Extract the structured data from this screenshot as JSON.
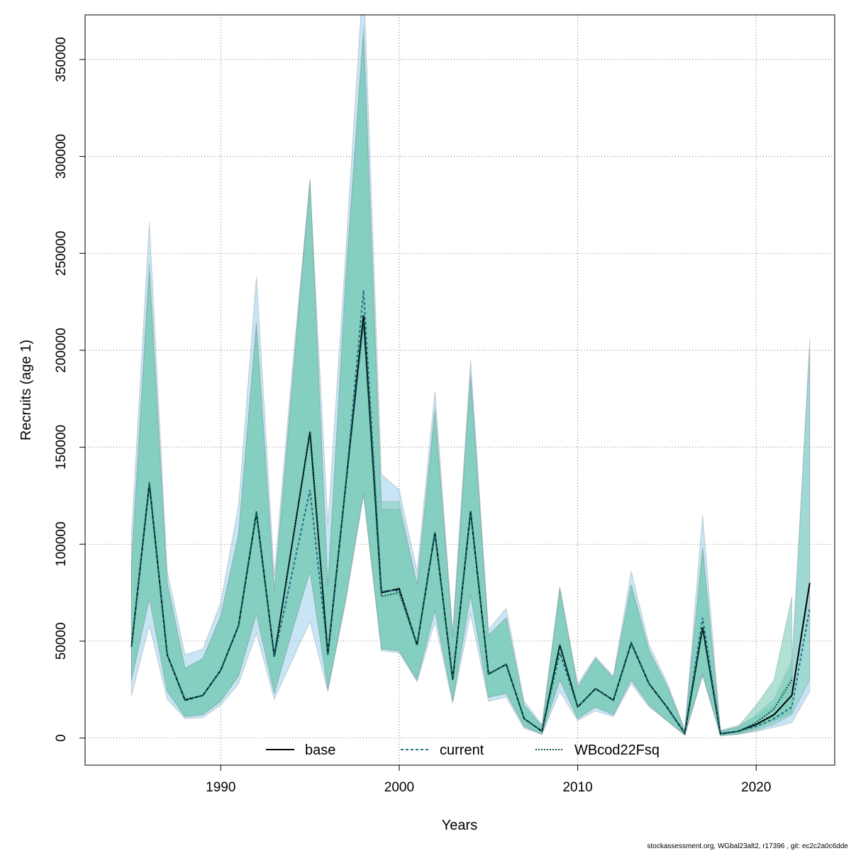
{
  "chart_data": {
    "type": "area",
    "xlabel": "Years",
    "ylabel": "Recruits (age 1)",
    "xlim": [
      1982.4,
      2024.4
    ],
    "ylim": [
      -14000,
      373000
    ],
    "x_ticks": [
      1990,
      2000,
      2010,
      2020
    ],
    "y_ticks": [
      0,
      50000,
      100000,
      150000,
      200000,
      250000,
      300000,
      350000
    ],
    "grid": true,
    "legend_position": "bottom-center",
    "years": [
      1985,
      1986,
      1987,
      1988,
      1989,
      1990,
      1991,
      1992,
      1993,
      1994,
      1995,
      1996,
      1997,
      1998,
      1999,
      2000,
      2001,
      2002,
      2003,
      2004,
      2005,
      2006,
      2007,
      2008,
      2009,
      2010,
      2011,
      2012,
      2013,
      2014,
      2015,
      2016,
      2017,
      2018,
      2019,
      2020,
      2021,
      2022,
      2023
    ],
    "series": [
      {
        "name": "base",
        "line_color": "#000000",
        "line_style": "solid",
        "band_color": "#7fcdbb",
        "values": [
          47000,
          131000,
          43000,
          19500,
          22000,
          35000,
          58000,
          116000,
          42000,
          100000,
          158000,
          43000,
          130000,
          218000,
          75000,
          77000,
          48000,
          106000,
          30000,
          117000,
          33000,
          38000,
          10000,
          3500,
          48000,
          16000,
          25500,
          19500,
          49000,
          28000,
          16000,
          2500,
          57000,
          2200,
          3500,
          7000,
          12000,
          22000,
          80000
        ],
        "lower": [
          30000,
          72000,
          24000,
          11000,
          12000,
          19000,
          32000,
          64000,
          23000,
          55000,
          86000,
          25000,
          72000,
          127000,
          46000,
          45000,
          30000,
          66000,
          19000,
          74000,
          21000,
          23000,
          6000,
          2000,
          30000,
          10000,
          16000,
          12000,
          30000,
          17000,
          9000,
          1500,
          33000,
          1300,
          2000,
          4000,
          7000,
          12000,
          30000
        ],
        "upper": [
          90000,
          245000,
          80000,
          36000,
          41000,
          63000,
          105000,
          215000,
          76000,
          182000,
          288000,
          78000,
          236000,
          367000,
          122000,
          122000,
          79000,
          170000,
          52000,
          188000,
          53000,
          62000,
          17000,
          6000,
          77000,
          26000,
          41000,
          31000,
          79000,
          45000,
          27000,
          4000,
          98000,
          3500,
          5500,
          12000,
          20000,
          40000,
          200000
        ]
      },
      {
        "name": "current",
        "line_color": "#1f6e8c",
        "line_style": "dashed",
        "band_color": "#8fcbe9",
        "values": [
          47000,
          131000,
          43000,
          19500,
          22000,
          35000,
          58000,
          116000,
          42000,
          85000,
          128000,
          43000,
          130000,
          231000,
          76000,
          76000,
          48000,
          106000,
          30000,
          117000,
          33000,
          38000,
          10000,
          3500,
          44000,
          16000,
          25500,
          19500,
          49000,
          28000,
          16000,
          2500,
          62000,
          2200,
          3500,
          6000,
          10000,
          16000,
          67000
        ],
        "lower": [
          22000,
          58000,
          20000,
          10000,
          10500,
          17000,
          28000,
          54000,
          20000,
          40000,
          60000,
          24000,
          70000,
          125000,
          45000,
          44000,
          29000,
          60000,
          18000,
          64000,
          19000,
          21000,
          5000,
          1800,
          24000,
          9000,
          14000,
          11000,
          28000,
          16000,
          9000,
          1400,
          32000,
          1200,
          2000,
          3500,
          5500,
          8000,
          24000
        ],
        "upper": [
          105000,
          266000,
          86000,
          43000,
          46000,
          70000,
          120000,
          238000,
          84000,
          190000,
          287000,
          110000,
          250000,
          395000,
          136000,
          128000,
          86000,
          179000,
          55000,
          195000,
          56000,
          67000,
          19000,
          7000,
          78000,
          28000,
          42000,
          32000,
          86000,
          48000,
          29000,
          4500,
          115000,
          4000,
          6500,
          11000,
          17000,
          32000,
          206000
        ]
      },
      {
        "name": "WBcod22Fsq",
        "line_color": "#0b5345",
        "line_style": "dotted",
        "band_color": "#6fc9b0",
        "values": [
          47000,
          132000,
          43000,
          20000,
          22000,
          35000,
          58000,
          117000,
          42000,
          100000,
          158000,
          43000,
          130000,
          215000,
          73000,
          75000,
          48000,
          106000,
          30000,
          117000,
          33000,
          38000,
          10000,
          3500,
          48000,
          16000,
          25500,
          19500,
          49000,
          28000,
          16000,
          2500,
          57000,
          2200,
          3500,
          8000,
          15000,
          30000
        ],
        "lower": [
          30000,
          72000,
          24000,
          11000,
          12000,
          19000,
          32000,
          64000,
          23000,
          55000,
          86000,
          25000,
          72000,
          126000,
          46000,
          45000,
          30000,
          66000,
          19000,
          74000,
          21000,
          23000,
          6000,
          2000,
          30000,
          10000,
          16000,
          12000,
          30000,
          17000,
          9000,
          1500,
          33000,
          1300,
          2000,
          5000,
          9000,
          13000
        ],
        "upper": [
          88000,
          240000,
          80000,
          36000,
          41000,
          63000,
          105000,
          212000,
          76000,
          180000,
          288000,
          78000,
          236000,
          362000,
          118000,
          118000,
          79000,
          168000,
          52000,
          186000,
          53000,
          62000,
          17000,
          6000,
          77000,
          26000,
          41000,
          31000,
          79000,
          45000,
          27000,
          4000,
          98000,
          3500,
          6000,
          17000,
          30000,
          73000
        ]
      }
    ]
  },
  "footer_note": "stockassessment.org, WGbal23alt2, r17396 , git: ec2c2a0c6dde"
}
